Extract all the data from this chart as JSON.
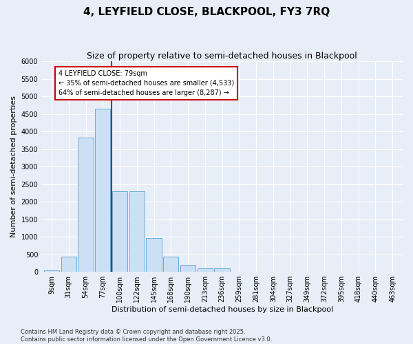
{
  "title": "4, LEYFIELD CLOSE, BLACKPOOL, FY3 7RQ",
  "subtitle": "Size of property relative to semi-detached houses in Blackpool",
  "xlabel": "Distribution of semi-detached houses by size in Blackpool",
  "ylabel": "Number of semi-detached properties",
  "footnote": "Contains HM Land Registry data © Crown copyright and database right 2025.\nContains public sector information licensed under the Open Government Licence v3.0.",
  "bar_labels": [
    "9sqm",
    "31sqm",
    "54sqm",
    "77sqm",
    "100sqm",
    "122sqm",
    "145sqm",
    "168sqm",
    "190sqm",
    "213sqm",
    "236sqm",
    "259sqm",
    "281sqm",
    "304sqm",
    "327sqm",
    "349sqm",
    "372sqm",
    "395sqm",
    "418sqm",
    "440sqm",
    "463sqm"
  ],
  "bar_values": [
    50,
    430,
    3820,
    4650,
    2300,
    2300,
    960,
    430,
    200,
    110,
    110,
    0,
    0,
    0,
    0,
    0,
    0,
    0,
    0,
    0,
    0
  ],
  "bar_color": "#cce0f5",
  "bar_edge_color": "#6aaed6",
  "vline_pos": 3.5,
  "vline_color": "#cc0000",
  "ylim": [
    0,
    6000
  ],
  "yticks": [
    0,
    500,
    1000,
    1500,
    2000,
    2500,
    3000,
    3500,
    4000,
    4500,
    5000,
    5500,
    6000
  ],
  "annotation_text": "4 LEYFIELD CLOSE: 79sqm\n← 35% of semi-detached houses are smaller (4,533)\n64% of semi-detached houses are larger (8,287) →",
  "annotation_box_color": "#ffffff",
  "annotation_box_edge": "#cc0000",
  "bg_color": "#e8eef7",
  "grid_color": "#ffffff",
  "title_fontsize": 11,
  "subtitle_fontsize": 9,
  "xlabel_fontsize": 8,
  "ylabel_fontsize": 8,
  "tick_fontsize": 7,
  "annotation_fontsize": 7,
  "footnote_fontsize": 6
}
